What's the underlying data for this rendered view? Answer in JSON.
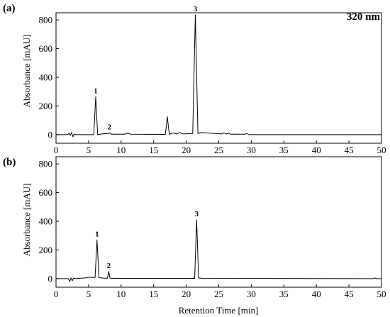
{
  "chart_data": [
    {
      "type": "line",
      "panel_label": "(a)",
      "annotation": "320 nm",
      "xlabel": "",
      "ylabel": "Absorbance [mAU]",
      "xlim": [
        0,
        50
      ],
      "ylim": [
        -60,
        850
      ],
      "xticks": [
        0,
        5,
        10,
        15,
        20,
        25,
        30,
        35,
        40,
        45,
        50
      ],
      "yticks": [
        0,
        200,
        400,
        600,
        800
      ],
      "grid": false,
      "peaks": [
        {
          "label": "1",
          "x": 6.1,
          "y": 265
        },
        {
          "label": "2",
          "x": 8.2,
          "y": 12
        },
        {
          "label": "3",
          "x": 21.4,
          "y": 835
        }
      ],
      "series": [
        {
          "x": [
            0,
            1.8,
            2.0,
            2.2,
            2.4,
            2.6,
            2.8,
            3.0,
            5.8,
            6.1,
            6.4,
            7.0,
            8.0,
            8.2,
            8.5,
            10.5,
            11.0,
            11.5,
            16.8,
            17.1,
            17.4,
            18.0,
            18.5,
            19.0,
            19.5,
            21.0,
            21.4,
            21.8,
            22.3,
            25.5,
            25.8,
            26.2,
            26.5,
            26.8,
            29.0,
            29.3,
            29.6,
            50
          ],
          "y": [
            0,
            0,
            10,
            -5,
            15,
            -15,
            5,
            0,
            0,
            265,
            0,
            5,
            8,
            12,
            3,
            3,
            10,
            3,
            2,
            125,
            2,
            12,
            5,
            15,
            5,
            8,
            835,
            8,
            15,
            5,
            12,
            5,
            10,
            3,
            3,
            8,
            0,
            0
          ]
        }
      ]
    },
    {
      "type": "line",
      "panel_label": "(b)",
      "xlabel": "Retention Time [min]",
      "ylabel": "Absorbance [mAU]",
      "xlim": [
        0,
        50
      ],
      "ylim": [
        -60,
        850
      ],
      "xticks": [
        0,
        5,
        10,
        15,
        20,
        25,
        30,
        35,
        40,
        45,
        50
      ],
      "yticks": [
        0,
        200,
        400,
        600,
        800
      ],
      "grid": false,
      "peaks": [
        {
          "label": "1",
          "x": 6.3,
          "y": 270
        },
        {
          "label": "2",
          "x": 8.1,
          "y": 50
        },
        {
          "label": "3",
          "x": 21.6,
          "y": 410
        }
      ],
      "series": [
        {
          "x": [
            0,
            1.9,
            2.1,
            2.3,
            2.5,
            2.7,
            3.0,
            4.5,
            5.0,
            5.5,
            6.0,
            6.3,
            6.6,
            7.5,
            7.9,
            8.1,
            8.3,
            9.0,
            21.3,
            21.6,
            21.9,
            22.5,
            48.8,
            49.0,
            49.2,
            50
          ],
          "y": [
            0,
            0,
            -20,
            5,
            -15,
            3,
            0,
            5,
            10,
            8,
            8,
            270,
            6,
            3,
            3,
            50,
            3,
            2,
            2,
            410,
            5,
            2,
            0,
            5,
            0,
            0
          ]
        }
      ]
    }
  ]
}
